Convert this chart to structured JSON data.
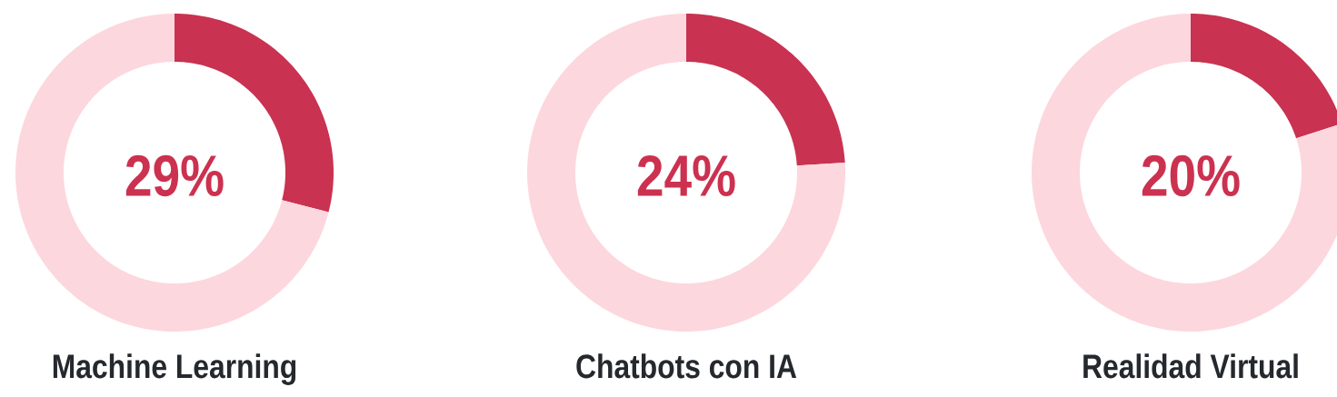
{
  "chart_data": [
    {
      "type": "donut",
      "title": "Machine Learning",
      "categories": [
        null,
        null
      ],
      "values": [
        29,
        71
      ],
      "colors": [
        "#c93250",
        "#fdd7de"
      ],
      "annotations": [
        "29%"
      ]
    },
    {
      "type": "donut",
      "title": "Chatbots con IA",
      "categories": [
        null,
        null
      ],
      "values": [
        24,
        76
      ],
      "colors": [
        "#c93250",
        "#fdd7de"
      ],
      "annotations": [
        "24%"
      ]
    },
    {
      "type": "donut",
      "title": "Realidad Virtual",
      "categories": [
        null,
        null
      ],
      "values": [
        20,
        80
      ],
      "colors": [
        "#c93250",
        "#fdd7de"
      ],
      "annotations": [
        "20%"
      ]
    }
  ]
}
